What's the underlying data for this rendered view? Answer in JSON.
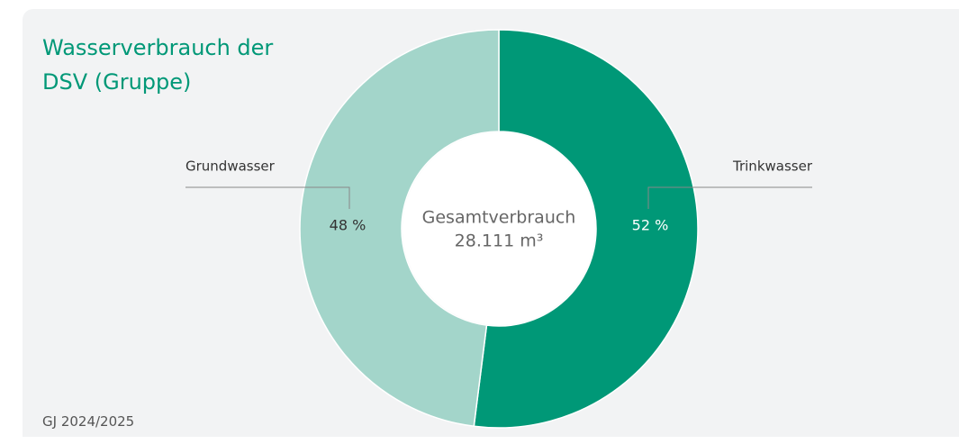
{
  "chart_data": {
    "type": "pie",
    "title": "Wasserverbrauch der DSV (Gruppe)",
    "categories": [
      "Trinkwasser",
      "Grundwasser"
    ],
    "values": [
      52,
      48
    ],
    "value_labels": [
      "52 %",
      "48 %"
    ],
    "colors": [
      "#009877",
      "#a3d5ca"
    ],
    "center_label": "Gesamtverbrauch",
    "total": {
      "value": 28111,
      "label": "28.111 m³"
    },
    "footnote": "GJ 2024/2025"
  }
}
